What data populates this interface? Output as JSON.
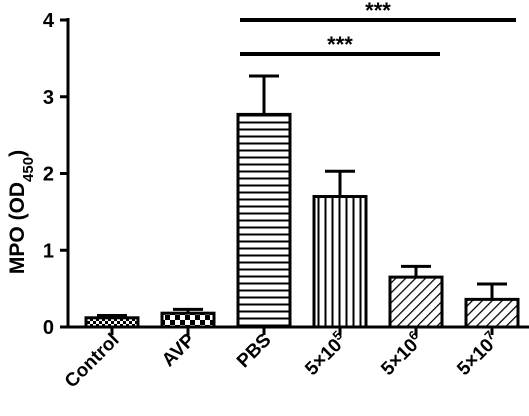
{
  "chart_data": {
    "type": "bar",
    "ylabel_main": "MPO (OD",
    "ylabel_sub": "450",
    "ylabel_close": ")",
    "ylim": [
      0,
      4
    ],
    "yticks": [
      0,
      1,
      2,
      3,
      4
    ],
    "categories": [
      {
        "base": "Control",
        "exp": ""
      },
      {
        "base": "AVP",
        "exp": ""
      },
      {
        "base": "PBS",
        "exp": ""
      },
      {
        "base": "5×10",
        "exp": "5"
      },
      {
        "base": "5×10",
        "exp": "6"
      },
      {
        "base": "5×10",
        "exp": "7"
      }
    ],
    "values": [
      0.12,
      0.18,
      2.77,
      1.7,
      0.65,
      0.36
    ],
    "errors": [
      0.03,
      0.05,
      0.5,
      0.33,
      0.14,
      0.2
    ],
    "patterns": [
      "checker",
      "checker-large",
      "horizontal",
      "vertical",
      "diag-down",
      "diag-down"
    ],
    "significance": [
      {
        "from": 2,
        "to": 5,
        "label": "***"
      },
      {
        "from": 2,
        "to": 4,
        "label": "***"
      }
    ],
    "grid": false
  }
}
